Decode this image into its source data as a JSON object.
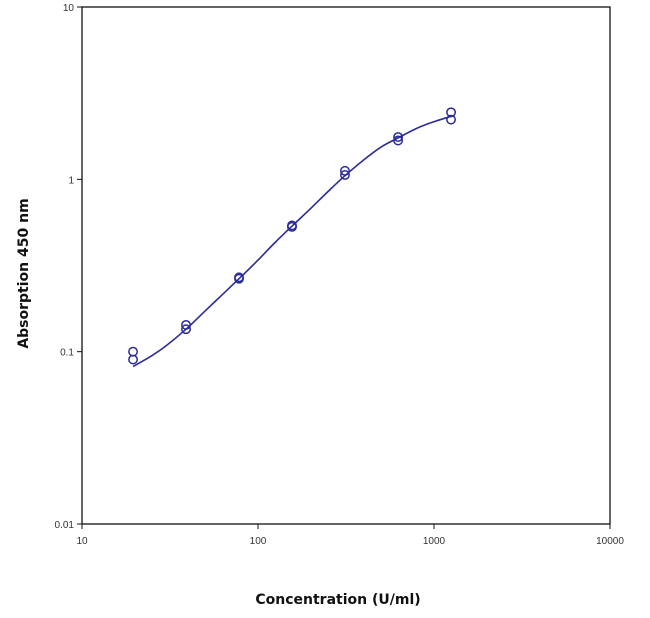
{
  "chart_data": {
    "type": "scatter",
    "title": "",
    "xlabel": "Concentration (U/ml)",
    "ylabel": "Absorption 450 nm",
    "xscale": "log",
    "yscale": "log",
    "xlim": [
      10,
      10000
    ],
    "ylim": [
      0.01,
      10
    ],
    "x_ticks": [
      10,
      100,
      1000,
      10000
    ],
    "x_tick_labels": [
      "10",
      "100",
      "1000",
      "10000"
    ],
    "y_ticks": [
      0.01,
      0.1,
      1,
      10
    ],
    "y_tick_labels": [
      "0.01",
      "0.1",
      "1",
      "10"
    ],
    "grid": false,
    "legend": "none",
    "colors": {
      "points": "#2b2b9a",
      "curve": "#2b2b9a",
      "axes": "#111111"
    },
    "series": [
      {
        "kind": "points",
        "marker": "open-circle",
        "x": [
          19.5,
          19.5,
          39,
          39,
          78,
          78,
          156,
          156,
          312,
          312,
          625,
          625,
          1250,
          1250
        ],
        "y": [
          0.1,
          0.09,
          0.143,
          0.135,
          0.27,
          0.265,
          0.54,
          0.53,
          1.12,
          1.06,
          1.76,
          1.68,
          2.45,
          2.22
        ]
      },
      {
        "kind": "fit-curve",
        "x": [
          19.5,
          25,
          30,
          39,
          50,
          62,
          78,
          100,
          125,
          156,
          200,
          250,
          312,
          400,
          500,
          625,
          800,
          1000,
          1250
        ],
        "y": [
          0.082,
          0.095,
          0.108,
          0.135,
          0.172,
          0.212,
          0.265,
          0.34,
          0.43,
          0.535,
          0.68,
          0.85,
          1.05,
          1.3,
          1.54,
          1.74,
          1.98,
          2.16,
          2.32
        ]
      }
    ]
  }
}
